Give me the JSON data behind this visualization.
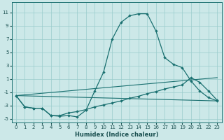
{
  "xlabel": "Humidex (Indice chaleur)",
  "background_color": "#cce8e8",
  "grid_color": "#99cccc",
  "line_color": "#1a7070",
  "xlim": [
    -0.5,
    23.5
  ],
  "ylim": [
    -5.5,
    12.5
  ],
  "xticks": [
    0,
    1,
    2,
    3,
    4,
    5,
    6,
    7,
    8,
    9,
    10,
    11,
    12,
    13,
    14,
    15,
    16,
    17,
    18,
    19,
    20,
    21,
    22,
    23
  ],
  "yticks": [
    -5,
    -3,
    -1,
    1,
    3,
    5,
    7,
    9,
    11
  ],
  "curve1_x": [
    0,
    1,
    2,
    3,
    4,
    5,
    6,
    7,
    8,
    9,
    10,
    11,
    12,
    13,
    14,
    15,
    16,
    17,
    18,
    19,
    20,
    21,
    22,
    23
  ],
  "curve1_y": [
    -1.5,
    -3.2,
    -3.4,
    -3.4,
    -4.5,
    -4.6,
    -4.5,
    -4.7,
    -3.7,
    -0.8,
    2.0,
    7.0,
    9.5,
    10.5,
    10.8,
    10.8,
    8.2,
    4.2,
    3.2,
    2.7,
    0.7,
    -0.8,
    -1.8,
    -2.3
  ],
  "curve2_x": [
    0,
    1,
    2,
    3,
    4,
    5,
    6,
    7,
    8,
    9,
    10,
    11,
    12,
    13,
    14,
    15,
    16,
    17,
    18,
    19,
    20,
    21,
    22,
    23
  ],
  "curve2_y": [
    -1.5,
    -3.2,
    -3.4,
    -3.4,
    -4.5,
    -4.5,
    -4.1,
    -3.9,
    -3.6,
    -3.2,
    -2.9,
    -2.6,
    -2.3,
    -1.9,
    -1.6,
    -1.2,
    -0.9,
    -0.5,
    -0.2,
    0.1,
    1.2,
    0.5,
    -0.8,
    -2.2
  ],
  "refline1_x": [
    0,
    23
  ],
  "refline1_y": [
    -1.5,
    1.2
  ],
  "refline2_x": [
    0,
    23
  ],
  "refline2_y": [
    -1.5,
    -2.3
  ],
  "xlabel_fontsize": 6.0,
  "tick_fontsize": 5.0
}
